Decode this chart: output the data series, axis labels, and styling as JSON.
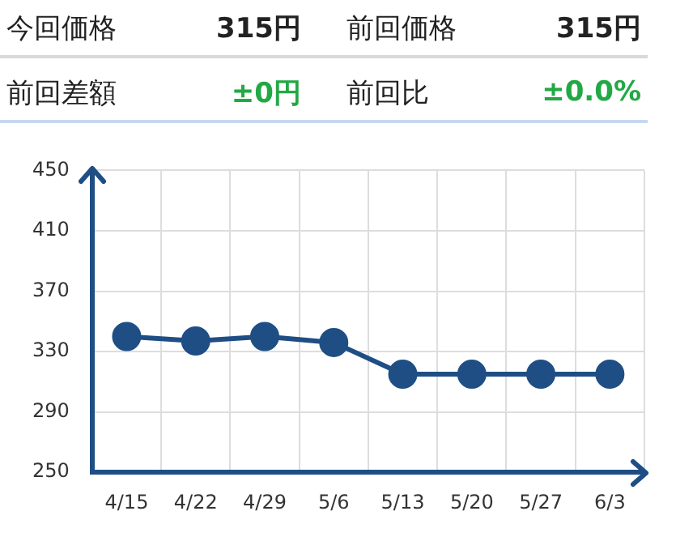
{
  "chart_data": {
    "type": "line",
    "annotations": [
      "今回価格",
      "315円",
      "前回価格",
      "315円",
      "前回差額",
      "±0円",
      "前回比",
      "±0.0%"
    ],
    "categories": [
      "4/15",
      "4/22",
      "4/29",
      "5/6",
      "5/13",
      "5/20",
      "5/27",
      "6/3"
    ],
    "series": [
      {
        "color": "#1f4e85",
        "values": [
          340,
          337,
          340,
          336,
          315,
          315,
          315,
          315
        ]
      }
    ],
    "ylim": [
      250,
      450
    ],
    "yticks": [
      250,
      290,
      330,
      370,
      410,
      450
    ],
    "grid": true,
    "marker": "circle",
    "legend": false
  }
}
